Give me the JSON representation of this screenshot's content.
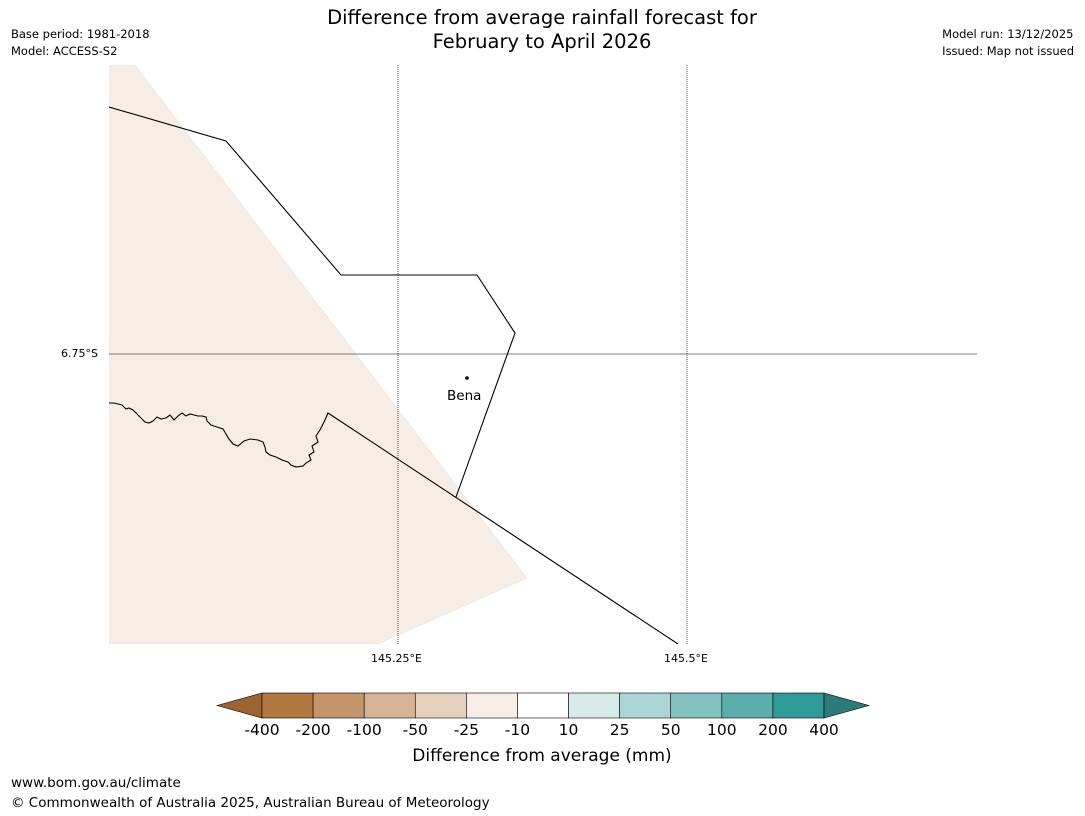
{
  "header": {
    "title_line1": "Difference from average rainfall forecast for",
    "title_line2": "February to April 2026",
    "base_period": "Base period: 1981-2018",
    "model": "Model: ACCESS-S2",
    "model_run": "Model run: 13/12/2025",
    "issued": "Issued: Map not issued"
  },
  "map": {
    "lat_label": "6.75°S",
    "lon_labels": [
      "145.25°E",
      "145.5°E"
    ],
    "place": "Bena",
    "shaded_category": "-25 to -10",
    "colors": {
      "shaded_area": "#f5ede6",
      "boundary": "#000000",
      "gridline": "#555555"
    }
  },
  "colorbar": {
    "title": "Difference from average (mm)",
    "ticks": [
      "-400",
      "-200",
      "-100",
      "-50",
      "-25",
      "-10",
      "10",
      "25",
      "50",
      "100",
      "200",
      "400"
    ],
    "colors": [
      "#9b6430",
      "#b0773e",
      "#c4956a",
      "#d6b395",
      "#e6d1bf",
      "#f5ede6",
      "#ffffff",
      "#d6eaea",
      "#acd6d6",
      "#83c1bf",
      "#5aaeac",
      "#2f9b98",
      "#2b7b78"
    ]
  },
  "footer": {
    "url": "www.bom.gov.au/climate",
    "copyright": "© Commonwealth of Australia 2025, Australian Bureau of Meteorology"
  }
}
